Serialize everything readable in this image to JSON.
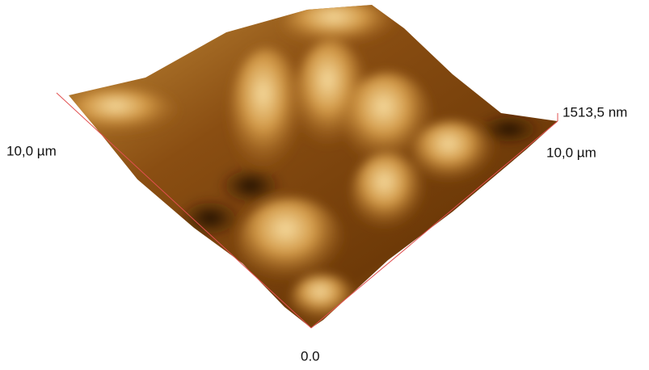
{
  "axes": {
    "x_label": "10,0 µm",
    "y_label": "10,0 µm",
    "z_label": "1513,5 nm",
    "origin_label": "0.0"
  }
}
